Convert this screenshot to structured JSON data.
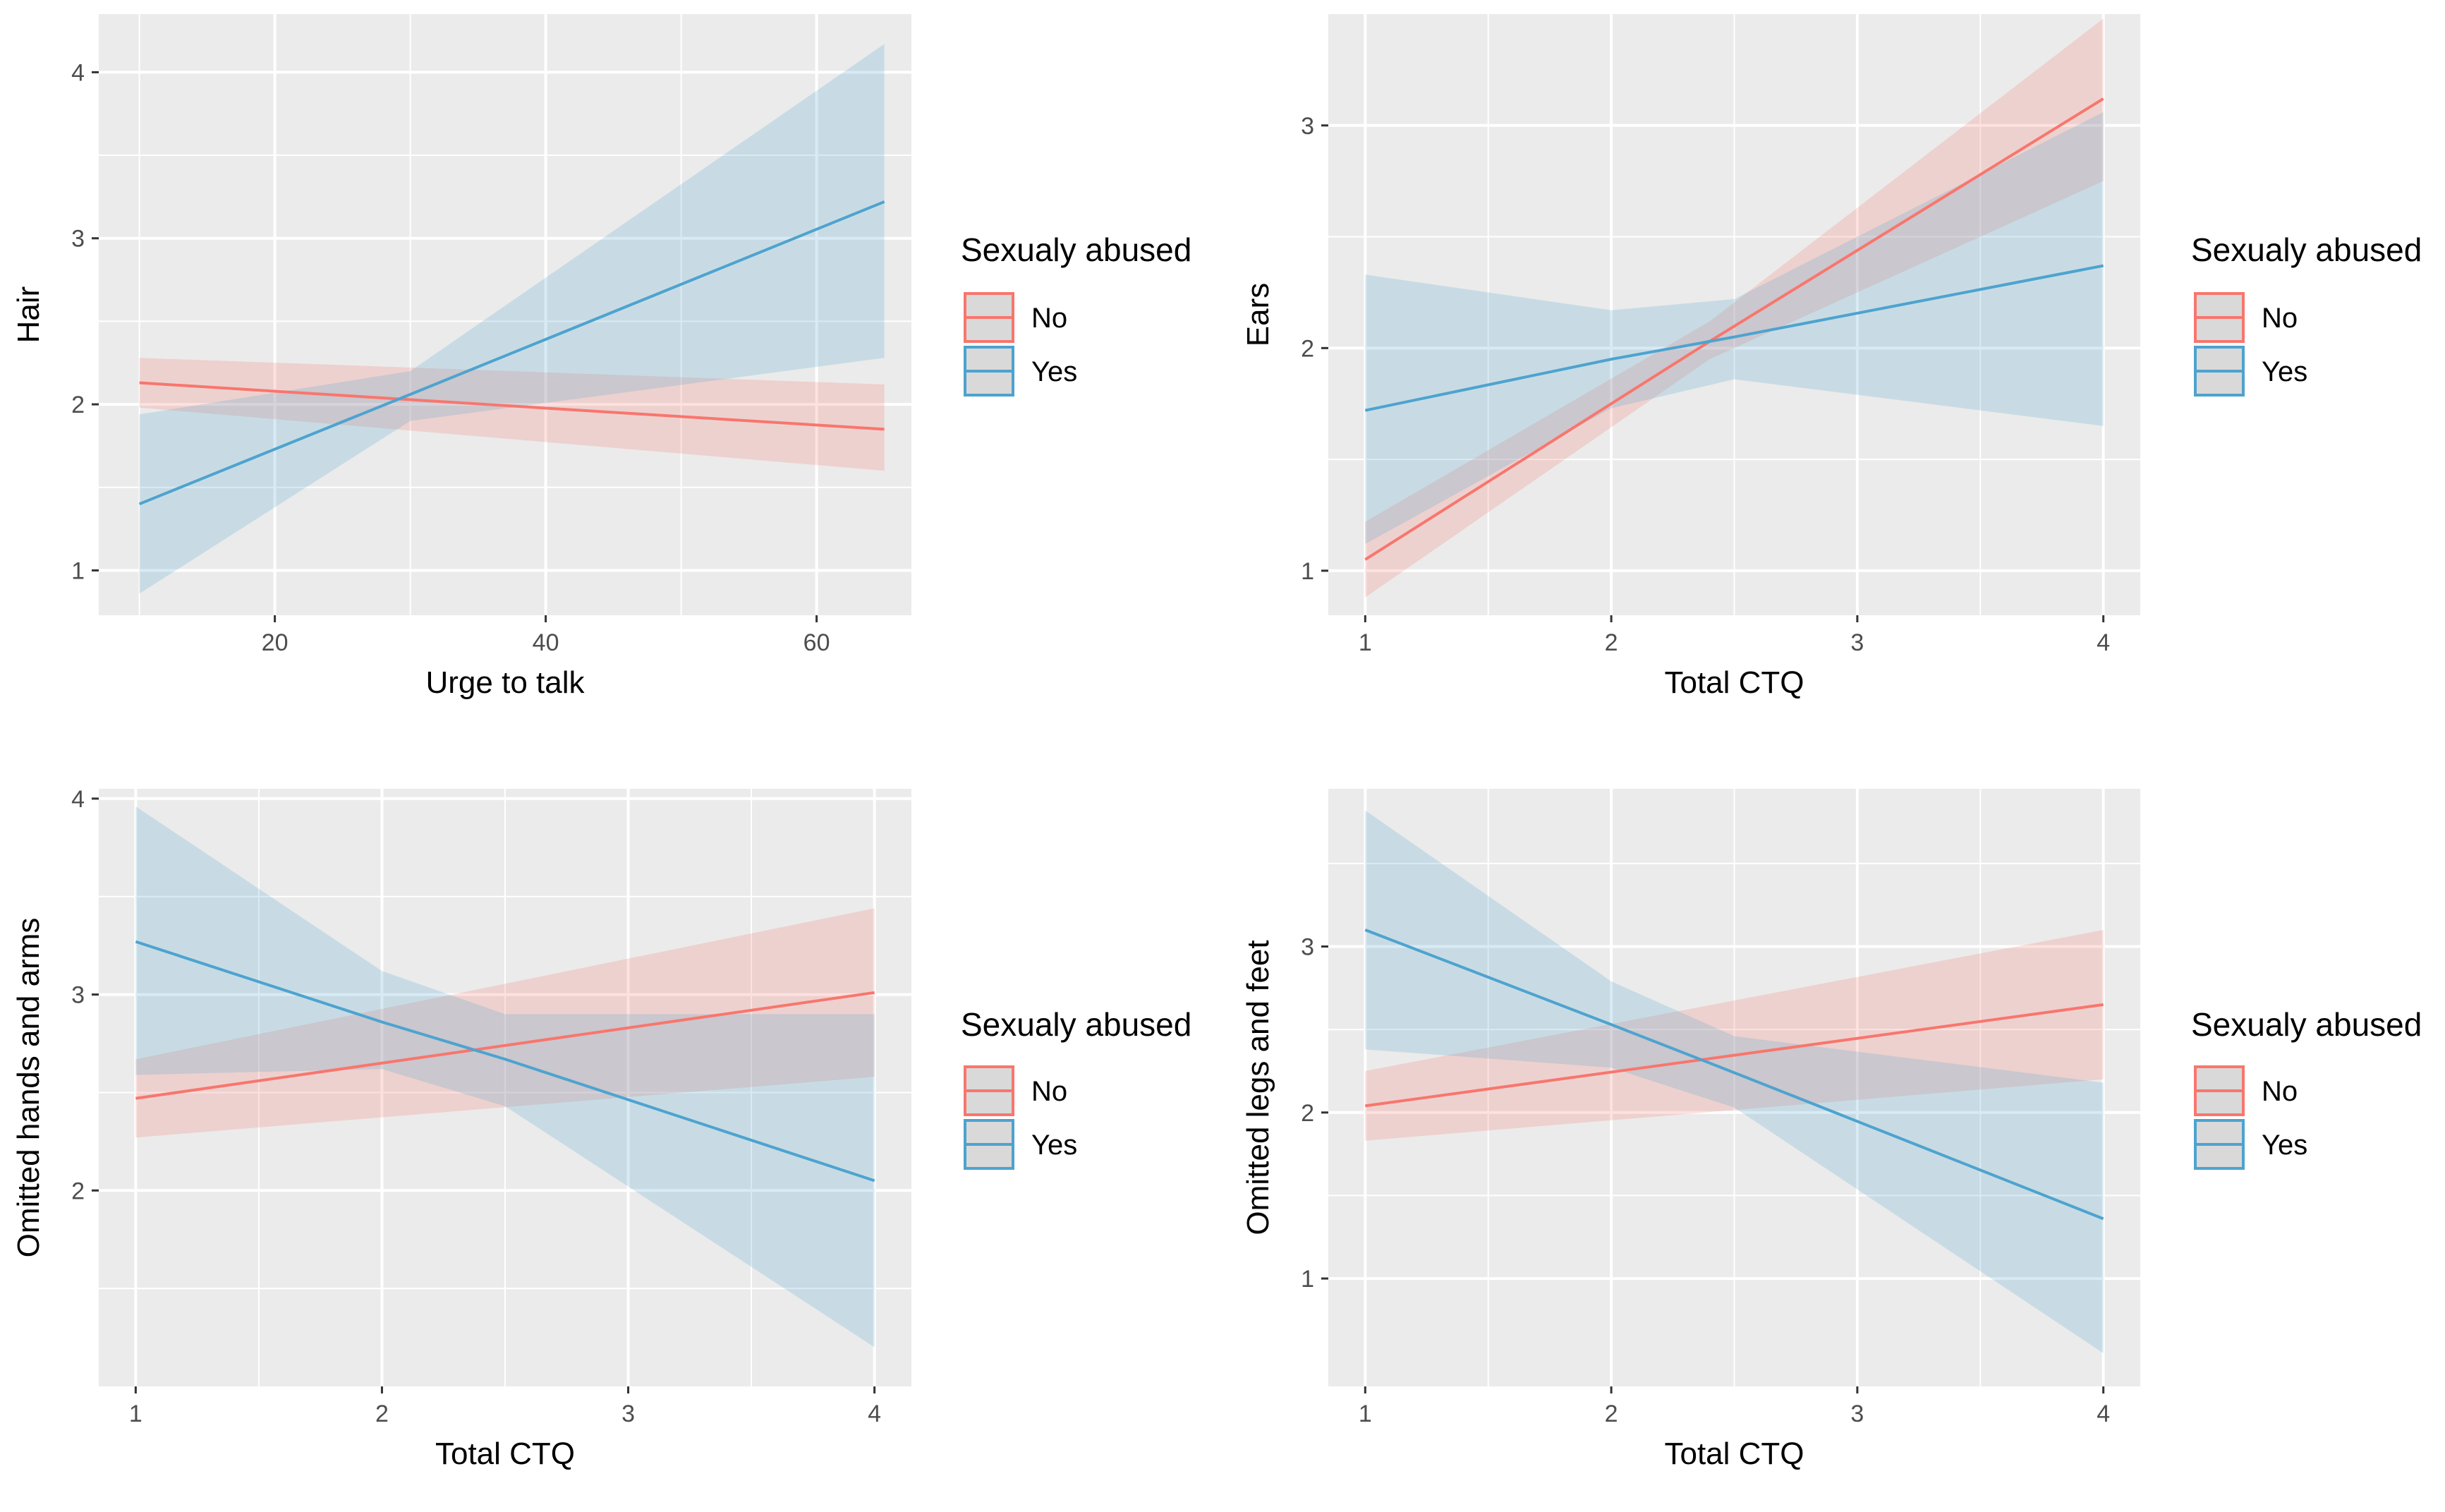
{
  "colors": {
    "no": "#F8766D",
    "yes": "#4DA3CF",
    "panel": "#EBEBEB",
    "grid": "#FFFFFF"
  },
  "chart_data": [
    {
      "type": "line",
      "xlabel": "Urge to talk",
      "ylabel": "Hair",
      "xlim": [
        7,
        67
      ],
      "ylim": [
        0.73,
        4.35
      ],
      "xticks": [
        20,
        40,
        60
      ],
      "xminor": [
        10,
        30,
        50
      ],
      "yticks": [
        1,
        2,
        3,
        4
      ],
      "yminor": [
        1.5,
        2.5,
        3.5
      ],
      "legend": {
        "title": "Sexualy abused",
        "position": "right",
        "entries": [
          "No",
          "Yes"
        ]
      },
      "series": [
        {
          "name": "No",
          "x": [
            10,
            65
          ],
          "y": [
            2.13,
            1.85
          ],
          "lower": [
            1.98,
            1.6
          ],
          "upper": [
            2.28,
            2.12
          ]
        },
        {
          "name": "Yes",
          "x": [
            10,
            30,
            65
          ],
          "y": [
            1.4,
            2.06,
            3.22
          ],
          "lower": [
            0.86,
            1.9,
            2.28
          ],
          "upper": [
            1.94,
            2.2,
            4.17
          ]
        }
      ]
    },
    {
      "type": "line",
      "xlabel": "Total CTQ",
      "ylabel": "Ears",
      "xlim": [
        0.85,
        4.15
      ],
      "ylim": [
        0.8,
        3.5
      ],
      "xticks": [
        1,
        2,
        3,
        4
      ],
      "xminor": [
        1.5,
        2.5,
        3.5
      ],
      "yticks": [
        1,
        2,
        3
      ],
      "yminor": [
        1.5,
        2.5
      ],
      "legend": {
        "title": "Sexualy abused",
        "position": "right",
        "entries": [
          "No",
          "Yes"
        ]
      },
      "series": [
        {
          "name": "No",
          "x": [
            1,
            2.4,
            4
          ],
          "y": [
            1.05,
            2.03,
            3.12
          ],
          "lower": [
            0.88,
            1.95,
            2.75
          ],
          "upper": [
            1.22,
            2.12,
            3.48
          ]
        },
        {
          "name": "Yes",
          "x": [
            1,
            2,
            2.5,
            4
          ],
          "y": [
            1.72,
            1.95,
            2.05,
            2.37
          ],
          "lower": [
            1.12,
            1.73,
            1.86,
            1.65
          ],
          "upper": [
            2.33,
            2.17,
            2.22,
            3.06
          ]
        }
      ]
    },
    {
      "type": "line",
      "xlabel": "Total CTQ",
      "ylabel": "Omitted hands and arms",
      "xlim": [
        0.85,
        4.15
      ],
      "ylim": [
        1.0,
        4.05
      ],
      "xticks": [
        1,
        2,
        3,
        4
      ],
      "xminor": [
        1.5,
        2.5,
        3.5
      ],
      "yticks": [
        2,
        3,
        4
      ],
      "yminor": [
        1.5,
        2.5,
        3.5
      ],
      "legend": {
        "title": "Sexualy abused",
        "position": "right",
        "entries": [
          "No",
          "Yes"
        ]
      },
      "series": [
        {
          "name": "No",
          "x": [
            1,
            4
          ],
          "y": [
            2.47,
            3.01
          ],
          "lower": [
            2.27,
            2.58
          ],
          "upper": [
            2.67,
            3.44
          ]
        },
        {
          "name": "Yes",
          "x": [
            1,
            2,
            2.5,
            4
          ],
          "y": [
            3.27,
            2.86,
            2.67,
            2.05
          ],
          "lower": [
            2.59,
            2.62,
            2.43,
            1.2
          ],
          "upper": [
            3.96,
            3.12,
            2.9,
            2.9
          ]
        }
      ]
    },
    {
      "type": "line",
      "xlabel": "Total CTQ",
      "ylabel": "Omitted legs and feet",
      "xlim": [
        0.85,
        4.15
      ],
      "ylim": [
        0.35,
        3.95
      ],
      "xticks": [
        1,
        2,
        3,
        4
      ],
      "xminor": [
        1.5,
        2.5,
        3.5
      ],
      "yticks": [
        1,
        2,
        3
      ],
      "yminor": [
        1.5,
        2.5,
        3.5
      ],
      "legend": {
        "title": "Sexualy abused",
        "position": "right",
        "entries": [
          "No",
          "Yes"
        ]
      },
      "series": [
        {
          "name": "No",
          "x": [
            1,
            4
          ],
          "y": [
            2.04,
            2.65
          ],
          "lower": [
            1.83,
            2.2
          ],
          "upper": [
            2.25,
            3.1
          ]
        },
        {
          "name": "Yes",
          "x": [
            1,
            2,
            2.5,
            4
          ],
          "y": [
            3.1,
            2.53,
            2.24,
            1.36
          ],
          "lower": [
            2.38,
            2.27,
            2.03,
            0.55
          ],
          "upper": [
            3.82,
            2.79,
            2.46,
            2.18
          ]
        }
      ]
    }
  ]
}
